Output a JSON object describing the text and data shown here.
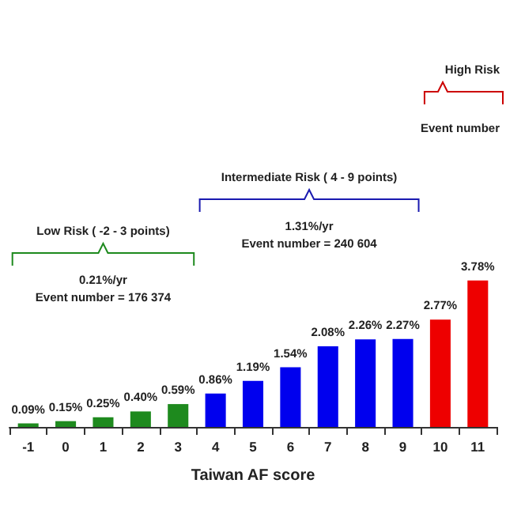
{
  "chart_data": {
    "type": "bar",
    "xlabel": "Taiwan AF score",
    "categories": [
      "-1",
      "0",
      "1",
      "2",
      "3",
      "4",
      "5",
      "6",
      "7",
      "8",
      "9",
      "10",
      "11"
    ],
    "values": [
      0.09,
      0.15,
      0.25,
      0.4,
      0.59,
      0.86,
      1.19,
      1.54,
      2.08,
      2.26,
      2.27,
      2.77,
      3.78
    ],
    "colors": [
      "#1e8a1e",
      "#1e8a1e",
      "#1e8a1e",
      "#1e8a1e",
      "#1e8a1e",
      "#0000ee",
      "#0000ee",
      "#0000ee",
      "#0000ee",
      "#0000ee",
      "#0000ee",
      "#ee0000",
      "#ee0000"
    ],
    "value_labels": [
      "0.09%",
      "0.15%",
      "0.25%",
      "0.40%",
      "0.59%",
      "0.86%",
      "1.19%",
      "1.54%",
      "2.08%",
      "2.26%",
      "2.27%",
      "2.77%",
      "3.78%"
    ],
    "annotations": [
      "Low Risk ( -2 - 3 points)",
      "0.21%/yr",
      "Event number = 176 374",
      "Intermediate Risk ( 4 - 9 points)",
      "1.31%/yr",
      "Event number = 240 604",
      "High Risk",
      "Event number"
    ]
  }
}
